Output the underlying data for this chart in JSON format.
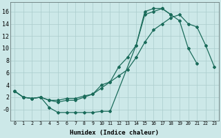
{
  "xlabel": "Humidex (Indice chaleur)",
  "background_color": "#cce8e8",
  "grid_color": "#aacccc",
  "line_color": "#1a6b5a",
  "xlim": [
    -0.5,
    23.5
  ],
  "ylim": [
    -1.8,
    17.5
  ],
  "xticks": [
    0,
    1,
    2,
    3,
    4,
    5,
    6,
    7,
    8,
    9,
    10,
    11,
    12,
    13,
    14,
    15,
    16,
    17,
    18,
    19,
    20,
    21,
    22,
    23
  ],
  "yticks": [
    0,
    2,
    4,
    6,
    8,
    10,
    12,
    14,
    16
  ],
  "ytick_labels": [
    "-0",
    "2",
    "4",
    "6",
    "8",
    "10",
    "12",
    "14",
    "16"
  ],
  "line1_x": [
    0,
    1,
    2,
    3,
    4,
    5,
    6,
    7,
    8,
    9,
    10,
    11,
    12,
    13,
    14,
    15,
    16,
    17,
    18,
    19,
    20,
    21
  ],
  "line1_y": [
    3.0,
    2.0,
    1.8,
    2.0,
    1.5,
    1.5,
    1.8,
    1.8,
    2.2,
    2.5,
    4.0,
    4.5,
    7.0,
    8.5,
    10.5,
    16.0,
    16.5,
    16.5,
    15.5,
    14.5,
    10.0,
    7.5
  ],
  "line2_x": [
    0,
    1,
    2,
    3,
    4,
    5,
    6,
    7,
    8,
    9,
    10,
    11,
    12,
    13,
    14,
    15,
    16,
    17,
    18,
    19,
    20,
    21,
    22,
    23
  ],
  "line2_y": [
    3.0,
    2.0,
    1.8,
    2.0,
    1.5,
    1.2,
    1.5,
    1.5,
    2.0,
    2.5,
    3.5,
    4.5,
    5.5,
    6.5,
    8.5,
    11.0,
    13.0,
    14.0,
    15.0,
    15.5,
    14.0,
    13.5,
    10.5,
    7.0
  ],
  "line3_x": [
    0,
    1,
    2,
    3,
    4,
    5,
    6,
    7,
    8,
    9,
    10,
    11,
    14,
    15,
    16,
    17,
    18
  ],
  "line3_y": [
    3.0,
    2.0,
    1.8,
    2.0,
    0.3,
    -0.5,
    -0.5,
    -0.5,
    -0.5,
    -0.5,
    -0.3,
    -0.3,
    10.5,
    15.5,
    16.0,
    16.5,
    15.5
  ]
}
